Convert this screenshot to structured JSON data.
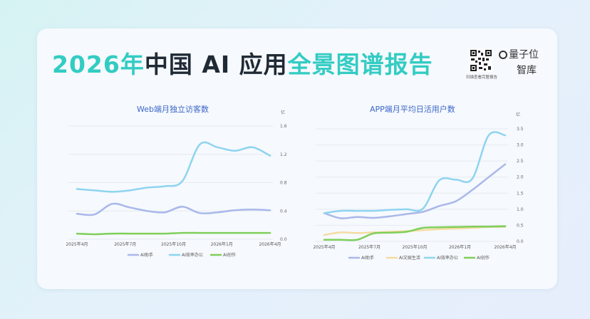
{
  "header": {
    "title_part1": "2026年",
    "title_part2": "中国 AI 应用",
    "title_part3": "全景图谱报告",
    "qr_caption": "扫描查看完整报告",
    "brand_top": "量子位",
    "brand_bottom": "智库"
  },
  "colors": {
    "AI助手": "#a9b8ea",
    "AI效率办公": "#8ed4f0",
    "AI创作": "#7fcf5a",
    "AI文娱生活": "#f4dca2"
  },
  "chart_data": [
    {
      "type": "line",
      "title": "Web端月独立访客数",
      "unit": "亿",
      "x_labels": [
        "2025年4月",
        "2025年7月",
        "2025年10月",
        "2026年1月",
        "2026年4月"
      ],
      "ylim": [
        0,
        1.6
      ],
      "yticks": [
        "0.0",
        "0.4",
        "0.8",
        "1.2",
        "1.6"
      ],
      "grid": true,
      "legend": "bottom",
      "series": [
        {
          "name": "AI助手",
          "values": [
            0.36,
            0.35,
            0.5,
            0.45,
            0.4,
            0.38,
            0.46,
            0.37,
            0.38,
            0.41,
            0.42,
            0.41
          ]
        },
        {
          "name": "AI效率办公",
          "values": [
            0.71,
            0.69,
            0.67,
            0.69,
            0.73,
            0.75,
            0.82,
            1.34,
            1.3,
            1.25,
            1.3,
            1.18
          ]
        },
        {
          "name": "AI创作",
          "values": [
            0.08,
            0.07,
            0.08,
            0.08,
            0.08,
            0.08,
            0.09,
            0.09,
            0.09,
            0.09,
            0.09,
            0.09
          ]
        }
      ]
    },
    {
      "type": "line",
      "title": "APP端月平均日活用户数",
      "unit": "亿",
      "x_labels": [
        "2025年4月",
        "2025年7月",
        "2025年10月",
        "2026年1月",
        "2026年4月"
      ],
      "ylim": [
        0,
        3.5
      ],
      "yticks": [
        "0.0",
        "0.5",
        "1.0",
        "1.5",
        "2.0",
        "2.5",
        "3.0",
        "3.5"
      ],
      "grid": true,
      "legend": "bottom",
      "series": [
        {
          "name": "AI助手",
          "values": [
            0.88,
            0.72,
            0.76,
            0.73,
            0.78,
            0.85,
            0.92,
            1.1,
            1.25,
            1.6,
            2.0,
            2.4
          ]
        },
        {
          "name": "AI文娱生活",
          "values": [
            0.2,
            0.28,
            0.26,
            0.28,
            0.3,
            0.32,
            0.35,
            0.38,
            0.4,
            0.42,
            0.45,
            0.45
          ]
        },
        {
          "name": "AI效率办公",
          "values": [
            0.88,
            0.95,
            0.95,
            0.95,
            0.98,
            1.0,
            1.02,
            1.9,
            1.92,
            1.95,
            3.3,
            3.3
          ]
        },
        {
          "name": "AI创作",
          "values": [
            0.05,
            0.05,
            0.05,
            0.25,
            0.27,
            0.3,
            0.42,
            0.44,
            0.45,
            0.46,
            0.46,
            0.47
          ]
        }
      ]
    }
  ]
}
